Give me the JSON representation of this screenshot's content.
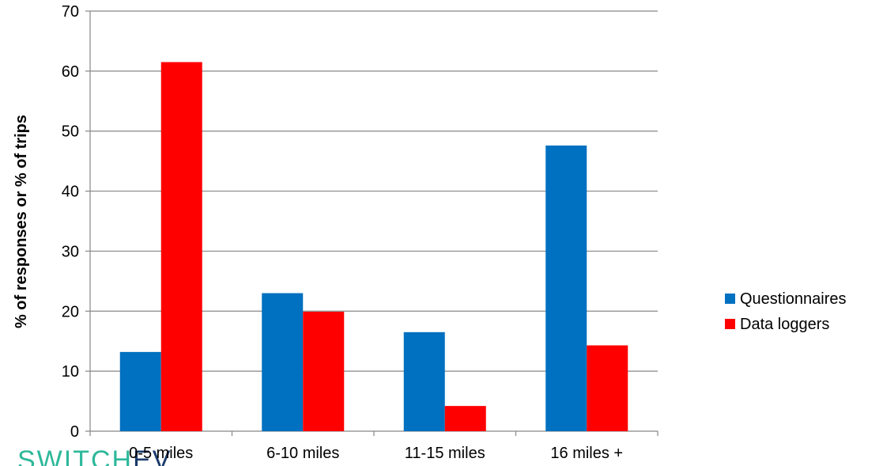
{
  "chart_data": {
    "type": "bar",
    "ylabel": "% of responses or % of trips",
    "xlabel": "",
    "ylim": [
      0,
      70
    ],
    "yticks": [
      0,
      10,
      20,
      30,
      40,
      50,
      60,
      70
    ],
    "grid": true,
    "legend_position": "right",
    "categories": [
      "0-5 miles",
      "6-10 miles",
      "11-15 miles",
      "16 miles +"
    ],
    "series": [
      {
        "name": "Questionnaires",
        "color": "#0070C0",
        "values": [
          13.2,
          23.0,
          16.5,
          47.6
        ]
      },
      {
        "name": "Data loggers",
        "color": "#FF0000",
        "values": [
          61.5,
          19.9,
          4.2,
          14.3
        ]
      }
    ]
  },
  "logo": {
    "text": "SWITCHEV",
    "color_light": "#2eb89a",
    "color_dark": "#1a3a6b"
  }
}
